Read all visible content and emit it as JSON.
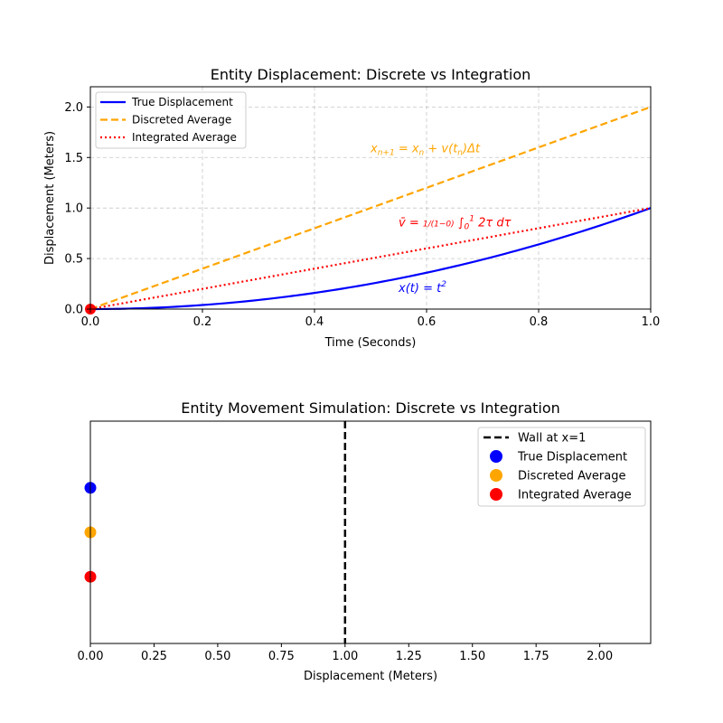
{
  "chart_data": [
    {
      "type": "line",
      "title": "Entity Displacement: Discrete vs Integration",
      "xlabel": "Time (Seconds)",
      "ylabel": "Displacement (Meters)",
      "xlim": [
        0,
        1.0
      ],
      "ylim": [
        0,
        2.2
      ],
      "x_ticks": [
        "0.0",
        "0.2",
        "0.4",
        "0.6",
        "0.8",
        "1.0"
      ],
      "y_ticks": [
        "0.0",
        "0.5",
        "1.0",
        "1.5",
        "2.0"
      ],
      "grid": true,
      "legend_position": "upper-left",
      "series": [
        {
          "name": "True Displacement",
          "color": "#0000ff",
          "style": "solid",
          "function": "t^2",
          "x": [
            0,
            0.1,
            0.2,
            0.3,
            0.4,
            0.5,
            0.6,
            0.7,
            0.8,
            0.9,
            1.0
          ],
          "y": [
            0,
            0.01,
            0.04,
            0.09,
            0.16,
            0.25,
            0.36,
            0.49,
            0.64,
            0.81,
            1.0
          ]
        },
        {
          "name": "Discreted Average",
          "color": "#ffa500",
          "style": "dashed",
          "x": [
            0,
            1.0
          ],
          "y": [
            0,
            2.0
          ]
        },
        {
          "name": "Integrated Average",
          "color": "#ff0000",
          "style": "dotted",
          "x": [
            0,
            1.0
          ],
          "y": [
            0,
            1.0
          ]
        }
      ],
      "markers": [
        {
          "x": 0,
          "y": 0,
          "color": "#ff0000"
        }
      ],
      "annotations": [
        {
          "parts": [
            [
              "x",
              ""
            ],
            [
              "n+1",
              "sub"
            ],
            [
              " = x",
              ""
            ],
            [
              "n",
              "sub"
            ],
            [
              " + v(t",
              ""
            ],
            [
              "n",
              "sub"
            ],
            [
              ")Δt",
              ""
            ]
          ],
          "x": 0.5,
          "y": 1.55,
          "color": "#ffa500"
        },
        {
          "parts": [
            [
              "v̄ = ",
              ""
            ],
            [
              "1/(1−0)",
              "small"
            ],
            [
              " ∫",
              ""
            ],
            [
              "0",
              "sub"
            ],
            [
              "1",
              "sup"
            ],
            [
              " 2τ dτ",
              ""
            ]
          ],
          "x": 0.55,
          "y": 0.82,
          "color": "#ff0000"
        },
        {
          "parts": [
            [
              "x(t) = t",
              ""
            ],
            [
              "2",
              "sup"
            ]
          ],
          "x": 0.55,
          "y": 0.17,
          "color": "#0000ff"
        }
      ]
    },
    {
      "type": "scatter",
      "title": "Entity Movement Simulation: Discrete vs Integration",
      "xlabel": "Displacement (Meters)",
      "xlim": [
        0,
        2.2
      ],
      "x_ticks": [
        "0.00",
        "0.25",
        "0.50",
        "0.75",
        "1.00",
        "1.25",
        "1.50",
        "1.75",
        "2.00"
      ],
      "wall": {
        "x": 1.0,
        "label": "Wall at x=1",
        "color": "#000000",
        "style": "dashed"
      },
      "legend_position": "upper-right",
      "points": [
        {
          "name": "True Displacement",
          "x": 0,
          "level": 0.7,
          "color": "#0000ff"
        },
        {
          "name": "Discreted Average",
          "x": 0,
          "level": 0.5,
          "color": "#ffa500"
        },
        {
          "name": "Integrated Average",
          "x": 0,
          "level": 0.3,
          "color": "#ff0000"
        }
      ]
    }
  ]
}
